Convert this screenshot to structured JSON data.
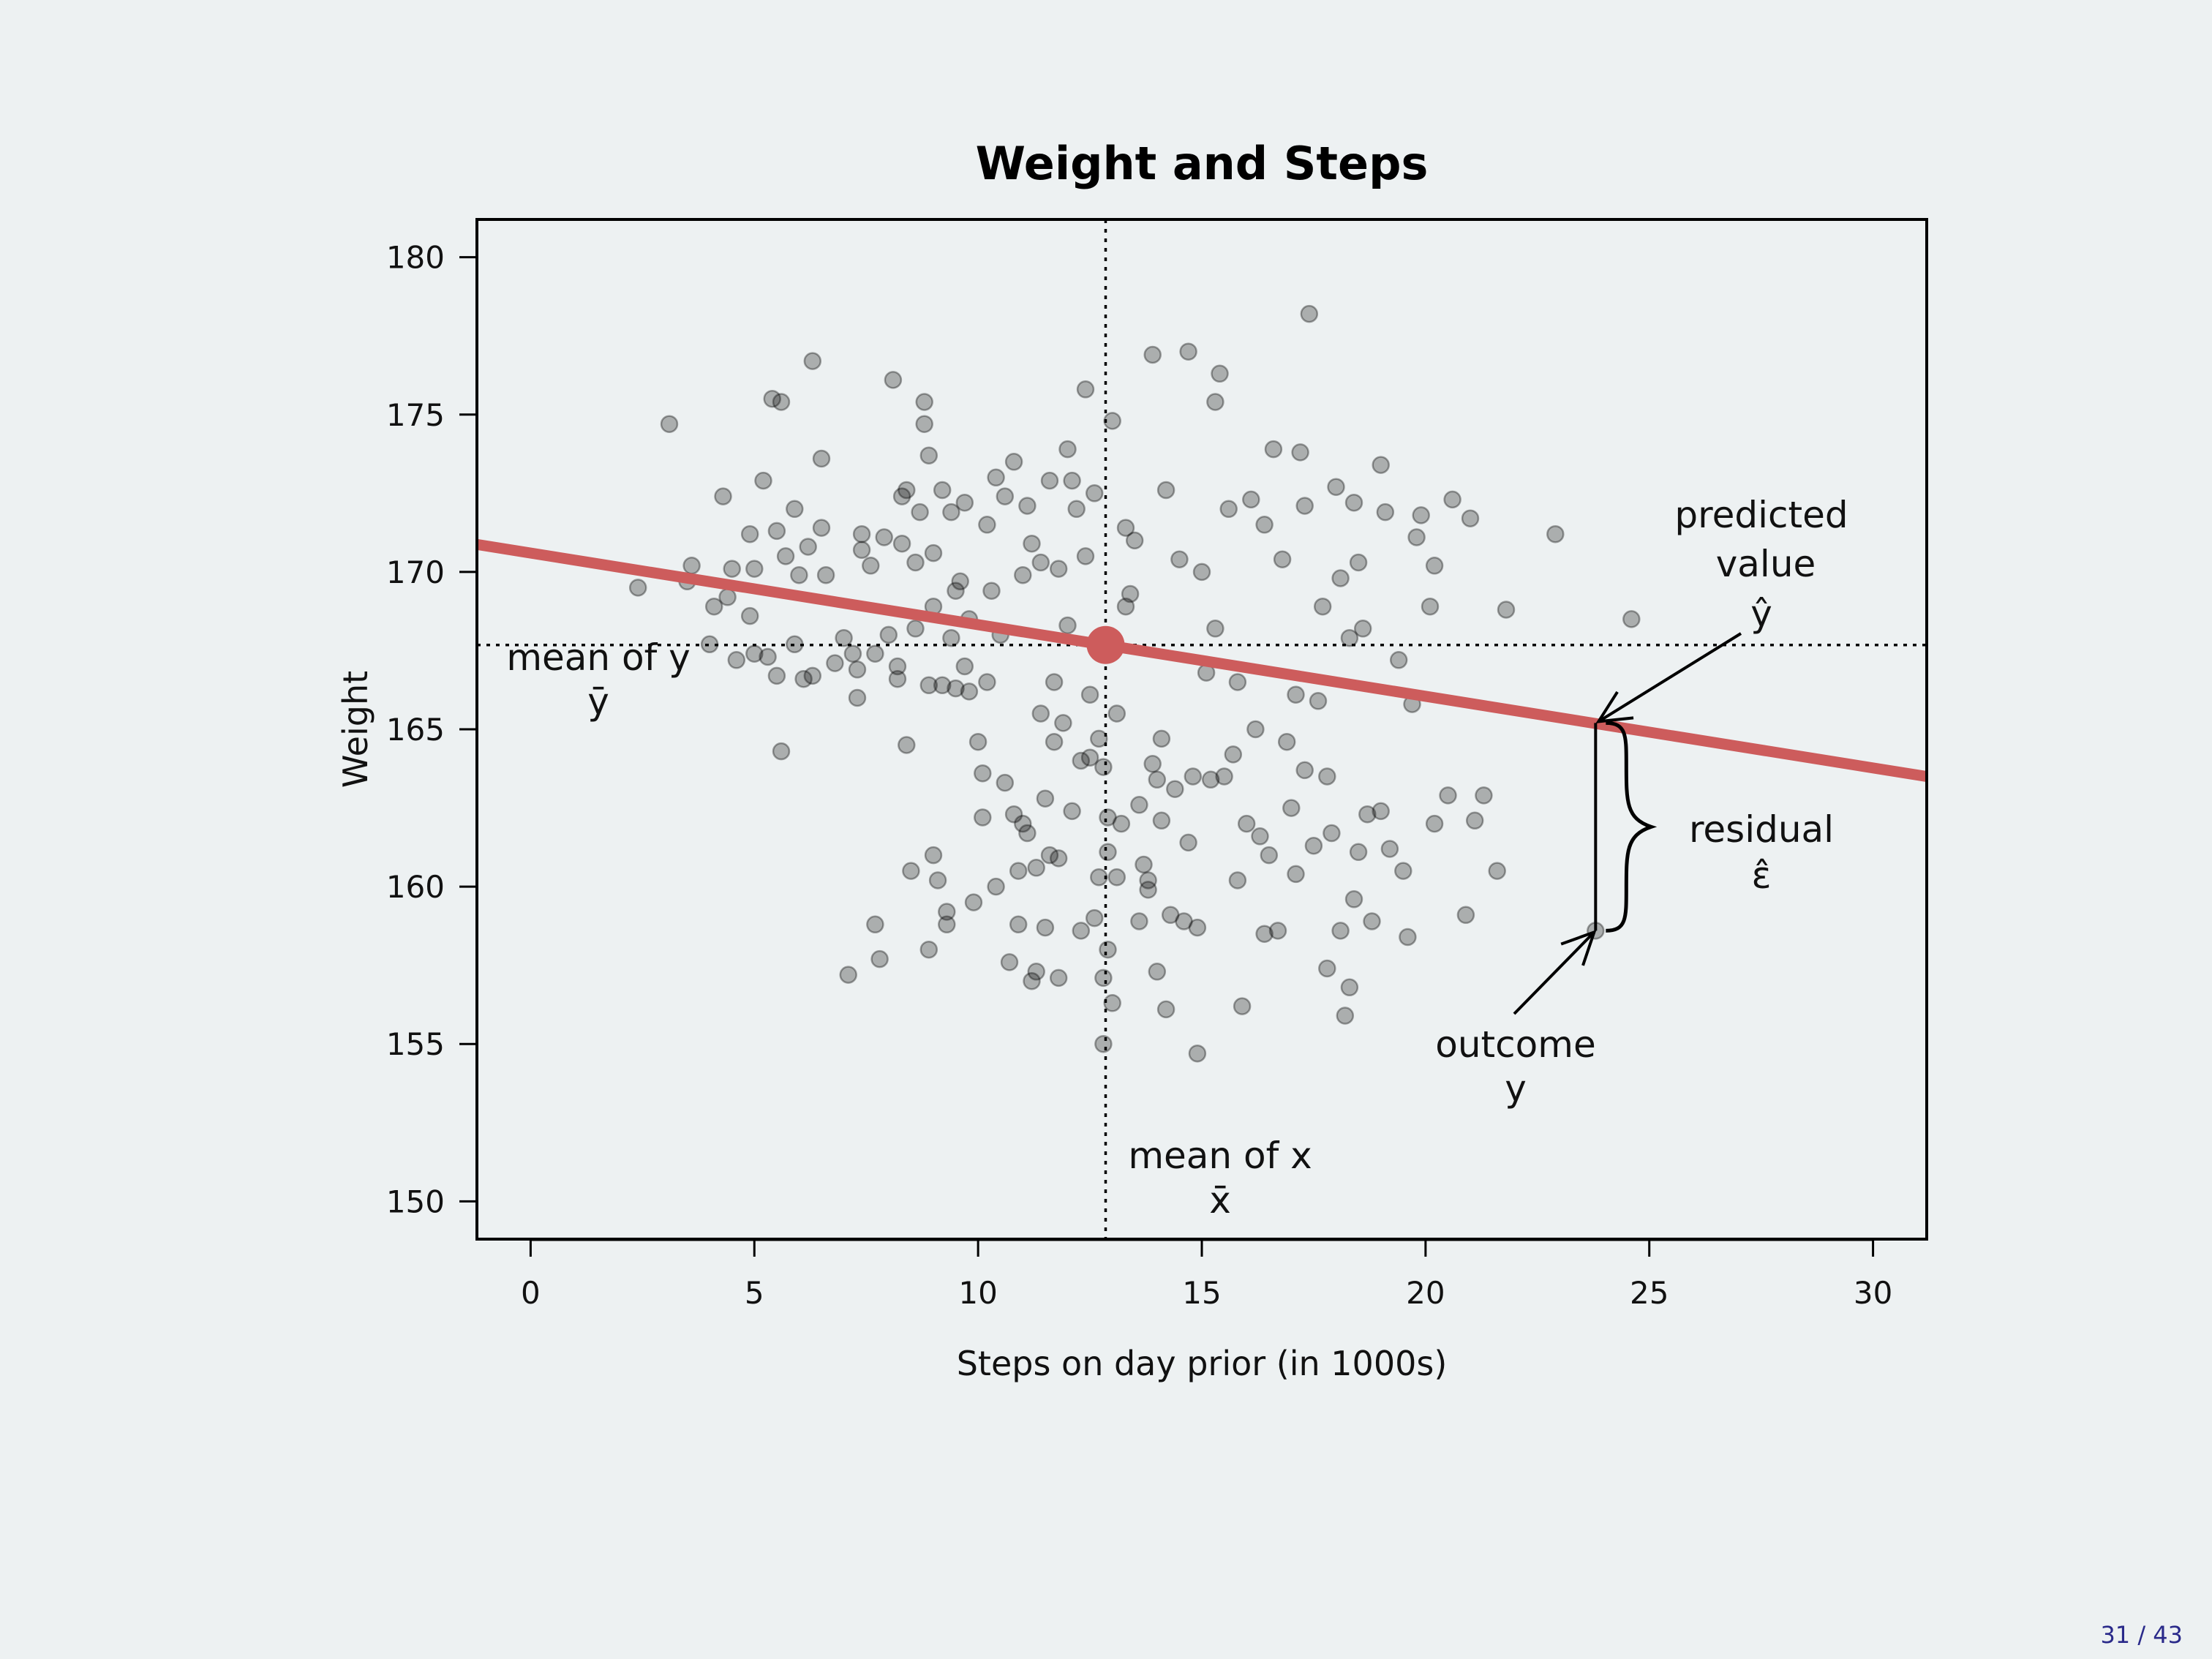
{
  "chart_data": {
    "type": "scatter",
    "title": "Weight and Steps",
    "xlabel": "Steps on day prior (in 1000s)",
    "ylabel": "Weight",
    "xlim": [
      -1.2,
      31.2
    ],
    "ylim": [
      148.8,
      181.2
    ],
    "x_ticks": [
      0,
      5,
      10,
      15,
      20,
      25,
      30
    ],
    "y_ticks": [
      150,
      155,
      160,
      165,
      170,
      175,
      180
    ],
    "grid": false,
    "point_color": "#000000",
    "point_opacity": 0.28,
    "regression_line": {
      "color": "#cd5c5c",
      "intercept": 170.6,
      "slope": -0.2276
    },
    "mean_point": {
      "x": 12.85,
      "y": 167.68,
      "color": "#cd5c5c"
    },
    "mean_x": 12.85,
    "mean_y": 167.68,
    "highlight_point": {
      "x": 23.8,
      "y": 158.6,
      "predicted": 165.2
    },
    "points": [
      [
        3.1,
        174.7
      ],
      [
        2.4,
        169.5
      ],
      [
        3.5,
        169.7
      ],
      [
        3.6,
        170.2
      ],
      [
        4.0,
        167.7
      ],
      [
        4.1,
        168.9
      ],
      [
        4.4,
        169.2
      ],
      [
        4.3,
        172.4
      ],
      [
        4.5,
        170.1
      ],
      [
        4.6,
        167.2
      ],
      [
        4.9,
        168.6
      ],
      [
        4.9,
        171.2
      ],
      [
        5.0,
        167.4
      ],
      [
        5.0,
        170.1
      ],
      [
        5.2,
        172.9
      ],
      [
        5.3,
        167.3
      ],
      [
        5.5,
        171.3
      ],
      [
        5.4,
        175.5
      ],
      [
        5.6,
        175.4
      ],
      [
        5.5,
        166.7
      ],
      [
        5.6,
        164.3
      ],
      [
        5.7,
        170.5
      ],
      [
        5.9,
        167.7
      ],
      [
        5.9,
        172.0
      ],
      [
        6.0,
        169.9
      ],
      [
        6.1,
        166.6
      ],
      [
        6.2,
        170.8
      ],
      [
        6.3,
        176.7
      ],
      [
        6.3,
        166.7
      ],
      [
        6.5,
        171.4
      ],
      [
        6.5,
        173.6
      ],
      [
        6.6,
        169.9
      ],
      [
        6.8,
        167.1
      ],
      [
        7.0,
        167.9
      ],
      [
        7.1,
        157.2
      ],
      [
        7.2,
        167.4
      ],
      [
        7.3,
        166.9
      ],
      [
        7.3,
        166.0
      ],
      [
        7.4,
        170.7
      ],
      [
        7.4,
        171.2
      ],
      [
        7.6,
        170.2
      ],
      [
        7.7,
        158.8
      ],
      [
        7.7,
        167.4
      ],
      [
        7.8,
        157.7
      ],
      [
        7.9,
        171.1
      ],
      [
        8.0,
        168.0
      ],
      [
        8.1,
        176.1
      ],
      [
        8.2,
        166.6
      ],
      [
        8.2,
        167.0
      ],
      [
        8.3,
        170.9
      ],
      [
        8.3,
        172.4
      ],
      [
        8.4,
        164.5
      ],
      [
        8.4,
        172.6
      ],
      [
        8.5,
        160.5
      ],
      [
        8.6,
        168.2
      ],
      [
        8.6,
        170.3
      ],
      [
        8.7,
        171.9
      ],
      [
        8.8,
        175.4
      ],
      [
        8.8,
        174.7
      ],
      [
        8.9,
        173.7
      ],
      [
        8.9,
        166.4
      ],
      [
        8.9,
        158.0
      ],
      [
        9.0,
        161.0
      ],
      [
        9.0,
        168.9
      ],
      [
        9.0,
        170.6
      ],
      [
        9.1,
        160.2
      ],
      [
        9.2,
        172.6
      ],
      [
        9.2,
        166.4
      ],
      [
        9.3,
        159.2
      ],
      [
        9.3,
        158.8
      ],
      [
        9.4,
        171.9
      ],
      [
        9.4,
        167.9
      ],
      [
        9.5,
        169.4
      ],
      [
        9.5,
        166.3
      ],
      [
        9.6,
        169.7
      ],
      [
        9.7,
        172.2
      ],
      [
        9.7,
        167.0
      ],
      [
        9.8,
        168.5
      ],
      [
        9.8,
        166.2
      ],
      [
        9.9,
        159.5
      ],
      [
        10.0,
        164.6
      ],
      [
        10.1,
        163.6
      ],
      [
        10.1,
        162.2
      ],
      [
        10.2,
        171.5
      ],
      [
        10.2,
        166.5
      ],
      [
        10.3,
        169.4
      ],
      [
        10.4,
        173.0
      ],
      [
        10.4,
        160.0
      ],
      [
        10.5,
        168.0
      ],
      [
        10.6,
        172.4
      ],
      [
        10.6,
        163.3
      ],
      [
        10.7,
        157.6
      ],
      [
        10.8,
        162.3
      ],
      [
        10.8,
        173.5
      ],
      [
        10.9,
        158.8
      ],
      [
        10.9,
        160.5
      ],
      [
        11.0,
        169.9
      ],
      [
        11.0,
        162.0
      ],
      [
        11.1,
        172.1
      ],
      [
        11.1,
        161.7
      ],
      [
        11.2,
        170.9
      ],
      [
        11.2,
        157.0
      ],
      [
        11.3,
        160.6
      ],
      [
        11.3,
        157.3
      ],
      [
        11.4,
        165.5
      ],
      [
        11.4,
        170.3
      ],
      [
        11.5,
        162.8
      ],
      [
        11.5,
        158.7
      ],
      [
        11.6,
        161.0
      ],
      [
        11.6,
        172.9
      ],
      [
        11.7,
        166.5
      ],
      [
        11.7,
        164.6
      ],
      [
        11.8,
        170.1
      ],
      [
        11.8,
        160.9
      ],
      [
        11.8,
        157.1
      ],
      [
        11.9,
        165.2
      ],
      [
        12.0,
        173.9
      ],
      [
        12.0,
        168.3
      ],
      [
        12.1,
        172.9
      ],
      [
        12.1,
        162.4
      ],
      [
        12.2,
        172.0
      ],
      [
        12.3,
        158.6
      ],
      [
        12.3,
        164.0
      ],
      [
        12.4,
        175.8
      ],
      [
        12.4,
        170.5
      ],
      [
        12.5,
        166.1
      ],
      [
        12.5,
        164.1
      ],
      [
        12.6,
        159.0
      ],
      [
        12.6,
        172.5
      ],
      [
        12.7,
        164.7
      ],
      [
        12.7,
        160.3
      ],
      [
        12.8,
        163.8
      ],
      [
        12.8,
        157.1
      ],
      [
        12.8,
        155.0
      ],
      [
        12.9,
        162.2
      ],
      [
        12.9,
        158.0
      ],
      [
        12.9,
        161.1
      ],
      [
        13.0,
        156.3
      ],
      [
        13.0,
        174.8
      ],
      [
        13.1,
        160.3
      ],
      [
        13.1,
        165.5
      ],
      [
        13.2,
        162.0
      ],
      [
        13.3,
        171.4
      ],
      [
        13.3,
        168.9
      ],
      [
        13.4,
        169.3
      ],
      [
        13.5,
        171.0
      ],
      [
        13.6,
        162.6
      ],
      [
        13.6,
        158.9
      ],
      [
        13.7,
        160.7
      ],
      [
        13.8,
        160.2
      ],
      [
        13.8,
        159.9
      ],
      [
        13.9,
        163.9
      ],
      [
        13.9,
        176.9
      ],
      [
        14.0,
        157.3
      ],
      [
        14.0,
        163.4
      ],
      [
        14.1,
        164.7
      ],
      [
        14.1,
        162.1
      ],
      [
        14.2,
        156.1
      ],
      [
        14.2,
        172.6
      ],
      [
        14.3,
        159.1
      ],
      [
        14.4,
        163.1
      ],
      [
        14.5,
        170.4
      ],
      [
        14.6,
        158.9
      ],
      [
        14.7,
        161.4
      ],
      [
        14.7,
        177.0
      ],
      [
        14.8,
        163.5
      ],
      [
        14.9,
        158.7
      ],
      [
        14.9,
        154.7
      ],
      [
        15.0,
        170.0
      ],
      [
        15.1,
        166.8
      ],
      [
        15.2,
        163.4
      ],
      [
        15.3,
        168.2
      ],
      [
        15.3,
        175.4
      ],
      [
        15.4,
        176.3
      ],
      [
        15.5,
        163.5
      ],
      [
        15.6,
        172.0
      ],
      [
        15.7,
        164.2
      ],
      [
        15.8,
        160.2
      ],
      [
        15.8,
        166.5
      ],
      [
        15.9,
        156.2
      ],
      [
        16.0,
        162.0
      ],
      [
        16.1,
        172.3
      ],
      [
        16.2,
        165.0
      ],
      [
        16.3,
        161.6
      ],
      [
        16.4,
        158.5
      ],
      [
        16.4,
        171.5
      ],
      [
        16.5,
        161.0
      ],
      [
        16.6,
        173.9
      ],
      [
        16.7,
        158.6
      ],
      [
        16.8,
        170.4
      ],
      [
        16.9,
        164.6
      ],
      [
        17.0,
        162.5
      ],
      [
        17.1,
        166.1
      ],
      [
        17.1,
        160.4
      ],
      [
        17.2,
        173.8
      ],
      [
        17.3,
        163.7
      ],
      [
        17.3,
        172.1
      ],
      [
        17.4,
        178.2
      ],
      [
        17.5,
        161.3
      ],
      [
        17.6,
        165.9
      ],
      [
        17.7,
        168.9
      ],
      [
        17.8,
        163.5
      ],
      [
        17.8,
        157.4
      ],
      [
        17.9,
        161.7
      ],
      [
        18.0,
        172.7
      ],
      [
        18.1,
        169.8
      ],
      [
        18.1,
        158.6
      ],
      [
        18.2,
        155.9
      ],
      [
        18.3,
        167.9
      ],
      [
        18.3,
        156.8
      ],
      [
        18.4,
        159.6
      ],
      [
        18.4,
        172.2
      ],
      [
        18.5,
        170.3
      ],
      [
        18.5,
        161.1
      ],
      [
        18.6,
        168.2
      ],
      [
        18.7,
        162.3
      ],
      [
        18.8,
        158.9
      ],
      [
        19.0,
        173.4
      ],
      [
        19.0,
        162.4
      ],
      [
        19.1,
        171.9
      ],
      [
        19.2,
        161.2
      ],
      [
        19.4,
        167.2
      ],
      [
        19.5,
        160.5
      ],
      [
        19.6,
        158.4
      ],
      [
        19.7,
        165.8
      ],
      [
        19.8,
        171.1
      ],
      [
        19.9,
        171.8
      ],
      [
        20.1,
        168.9
      ],
      [
        20.2,
        170.2
      ],
      [
        20.2,
        162.0
      ],
      [
        20.5,
        162.9
      ],
      [
        20.6,
        172.3
      ],
      [
        20.9,
        159.1
      ],
      [
        21.0,
        171.7
      ],
      [
        21.1,
        162.1
      ],
      [
        21.3,
        162.9
      ],
      [
        21.6,
        160.5
      ],
      [
        21.8,
        168.8
      ],
      [
        22.9,
        171.2
      ],
      [
        23.8,
        158.6
      ],
      [
        24.6,
        168.5
      ]
    ]
  },
  "annotations": {
    "mean_y_line1": "mean of y",
    "mean_y_line2": "ȳ",
    "mean_x_line1": "mean of x",
    "mean_x_line2": "x̄",
    "predicted_line1": "predicted",
    "predicted_line2": "value",
    "predicted_line3": "ŷ",
    "residual_line1": "residual",
    "residual_line2": "ε̂",
    "outcome_line1": "outcome",
    "outcome_line2": "y"
  },
  "page": {
    "current": "31",
    "total": "43",
    "indicator": "31 / 43"
  }
}
